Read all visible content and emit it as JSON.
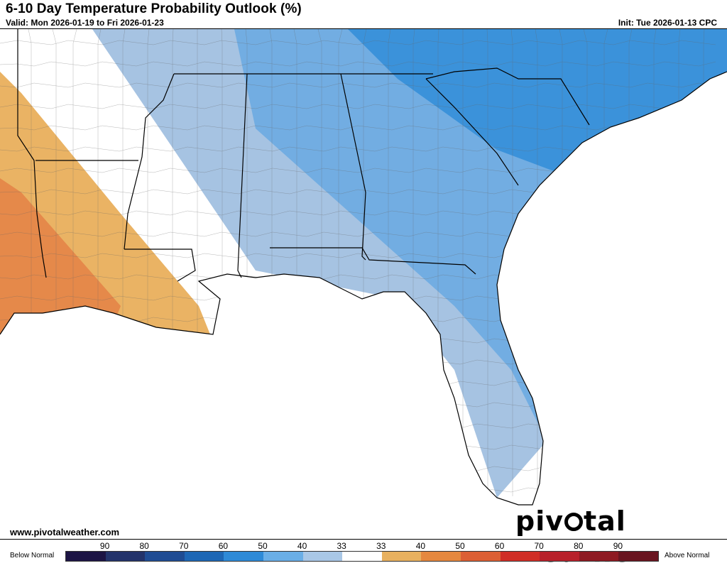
{
  "header": {
    "title": "6-10 Day Temperature Probability Outlook (%)",
    "valid": "Valid: Mon 2026-01-19 to Fri 2026-01-23",
    "init": "Init: Tue 2026-01-13 CPC"
  },
  "footer": {
    "website": "www.pivotalweather.com",
    "brand_left": "piv",
    "brand_right": "tal weather"
  },
  "legend": {
    "below_label": "Below Normal",
    "above_label": "Above Normal",
    "ticks": [
      "90",
      "80",
      "70",
      "60",
      "50",
      "40",
      "33",
      "33",
      "40",
      "50",
      "60",
      "70",
      "80",
      "90"
    ],
    "colors": [
      "#1c1444",
      "#23336a",
      "#1f4c93",
      "#1e67b5",
      "#2e8ad7",
      "#6aaee6",
      "#a9c7e6",
      "#ffffff",
      "#e8b160",
      "#e5883f",
      "#dc5f34",
      "#d02e26",
      "#b8212b",
      "#8e1a22",
      "#691520"
    ]
  },
  "map_colors": {
    "below_33": "#a6c3e2",
    "below_40": "#72ade2",
    "below_50": "#3b92da",
    "above_33": "#eab364",
    "above_40": "#e5894a",
    "above_50": "#d9622f",
    "boundary": "#000000",
    "county": "#555555"
  }
}
